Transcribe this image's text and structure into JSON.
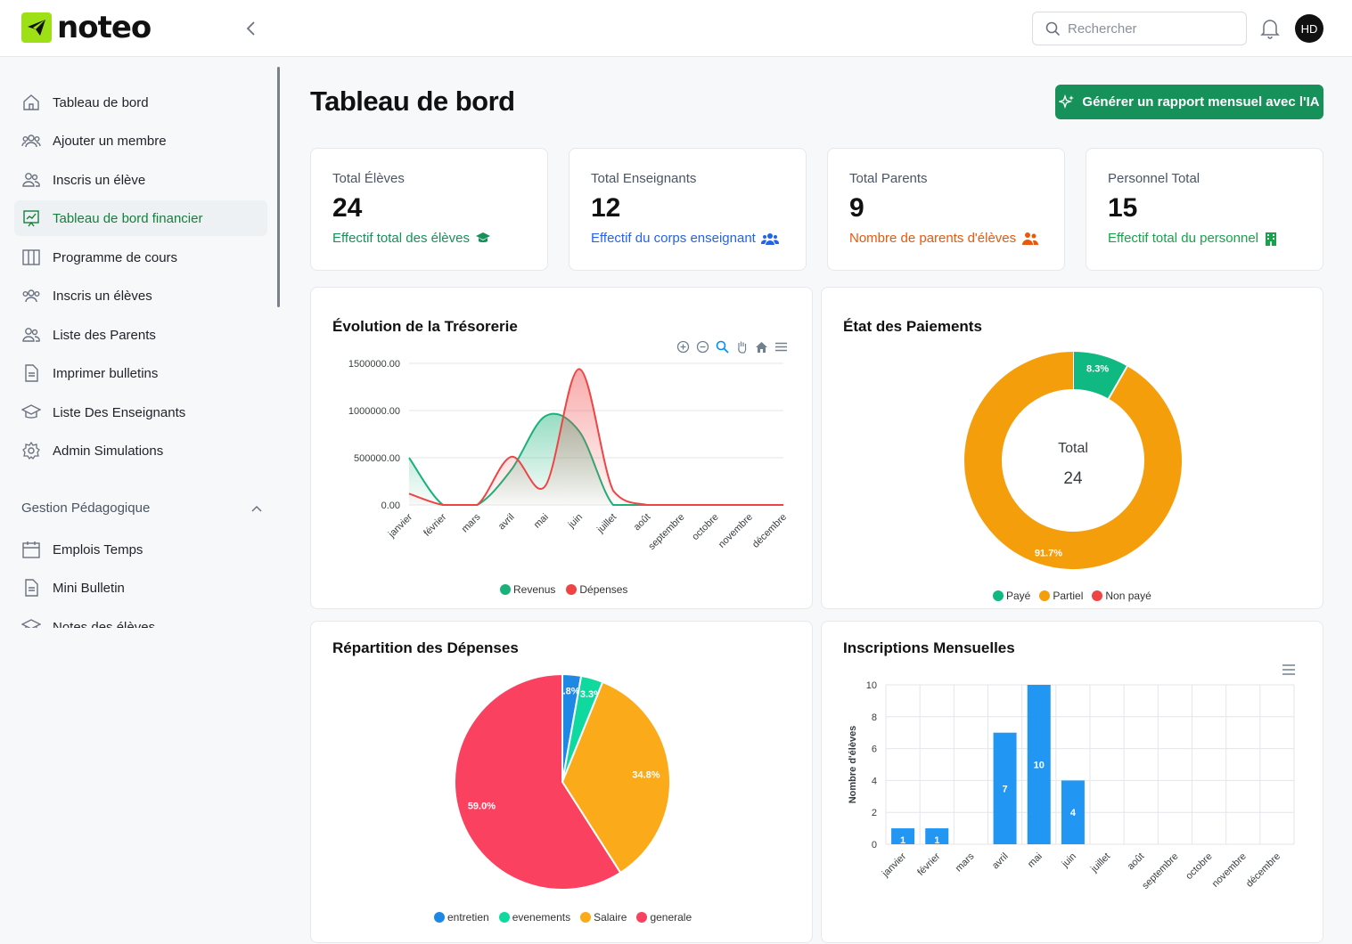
{
  "app": {
    "brand": "noteo",
    "brand_color": "#9ee016",
    "accent": "#16915a"
  },
  "header": {
    "search_placeholder": "Rechercher",
    "avatar_initials": "HD"
  },
  "sidebar": {
    "items": [
      {
        "label": "Tableau de bord",
        "icon": "home-icon"
      },
      {
        "label": "Ajouter un membre",
        "icon": "users-icon"
      },
      {
        "label": "Inscris un élève",
        "icon": "user-pair-icon"
      },
      {
        "label": "Tableau de bord financier",
        "icon": "chart-board-icon",
        "active": true
      },
      {
        "label": "Programme de cours",
        "icon": "columns-icon"
      },
      {
        "label": "Inscris un élèves",
        "icon": "users-icon"
      },
      {
        "label": "Liste des Parents",
        "icon": "user-pair-icon"
      },
      {
        "label": "Imprimer bulletins",
        "icon": "document-icon"
      },
      {
        "label": "Liste Des Enseignants",
        "icon": "graduation-cap-icon"
      },
      {
        "label": "Admin Simulations",
        "icon": "gear-icon"
      }
    ],
    "section_title": "Gestion Pédagogique",
    "section_items": [
      {
        "label": "Emplois Temps",
        "icon": "calendar-icon"
      },
      {
        "label": "Mini Bulletin",
        "icon": "document-icon"
      },
      {
        "label": "Notes des élèves",
        "icon": "graduation-cap-icon"
      }
    ]
  },
  "main": {
    "title": "Tableau de bord",
    "generate_button": "Générer un rapport mensuel avec l'IA",
    "stats": [
      {
        "label": "Total Élèves",
        "value": "24",
        "sub": "Effectif total des élèves",
        "color": "#16915a",
        "icon": "graduation-cap-icon"
      },
      {
        "label": "Total Enseignants",
        "value": "12",
        "sub": "Effectif du corps enseignant",
        "color": "#2563eb",
        "icon": "users-icon"
      },
      {
        "label": "Total Parents",
        "value": "9",
        "sub": "Nombre de parents d'élèves",
        "color": "#ea580c",
        "icon": "user-pair-icon"
      },
      {
        "label": "Personnel Total",
        "value": "15",
        "sub": "Effectif total du personnel",
        "color": "#16a34a",
        "icon": "building-icon"
      }
    ]
  },
  "chart_data": [
    {
      "type": "area",
      "title": "Évolution de la Trésorerie",
      "categories": [
        "janvier",
        "février",
        "mars",
        "avril",
        "mai",
        "juin",
        "juillet",
        "août",
        "septembre",
        "octobre",
        "novembre",
        "décembre"
      ],
      "yticks": [
        "0.00",
        "500000.00",
        "1000000.00",
        "1500000.00"
      ],
      "ylim": [
        0,
        1500000
      ],
      "series": [
        {
          "name": "Revenus",
          "color": "#19b27a",
          "values": [
            500000,
            0,
            0,
            370000,
            940000,
            780000,
            0,
            0,
            0,
            0,
            0,
            0
          ]
        },
        {
          "name": "Dépenses",
          "color": "#ef4444",
          "values": [
            120000,
            0,
            0,
            510000,
            200000,
            1440000,
            150000,
            0,
            0,
            0,
            0,
            0
          ]
        }
      ],
      "grid": true,
      "legend": "bottom"
    },
    {
      "type": "pie",
      "title": "État des Paiements",
      "center_label": "Total",
      "center_value": "24",
      "slices": [
        {
          "name": "Payé",
          "value": 8.3,
          "label": "8.3%",
          "color": "#10b981"
        },
        {
          "name": "Partiel",
          "value": 91.7,
          "label": "91.7%",
          "color": "#f59e0b"
        },
        {
          "name": "Non payé",
          "value": 0,
          "label": "",
          "color": "#ef4444"
        }
      ],
      "legend": "bottom"
    },
    {
      "type": "pie",
      "title": "Répartition des Dépenses",
      "slices": [
        {
          "name": "entretien",
          "value": 2.8,
          "label": "2.8%",
          "color": "#1e88e5"
        },
        {
          "name": "evenements",
          "value": 3.3,
          "label": "3.3%",
          "color": "#10d9a0"
        },
        {
          "name": "Salaire",
          "value": 34.8,
          "label": "34.8%",
          "color": "#fbab1a"
        },
        {
          "name": "generale",
          "value": 59.0,
          "label": "59.0%",
          "color": "#fb4160"
        }
      ],
      "legend": "bottom"
    },
    {
      "type": "bar",
      "title": "Inscriptions Mensuelles",
      "ylabel": "Nombre d'élèves",
      "categories": [
        "janvier",
        "février",
        "mars",
        "avril",
        "mai",
        "juin",
        "juillet",
        "août",
        "septembre",
        "octobre",
        "novembre",
        "décembre"
      ],
      "values": [
        1,
        1,
        0,
        7,
        10,
        4,
        0,
        0,
        0,
        0,
        0,
        0
      ],
      "yticks": [
        "0",
        "2",
        "4",
        "6",
        "8",
        "10"
      ],
      "ylim": [
        0,
        10
      ],
      "color": "#2196f3",
      "grid": true
    }
  ]
}
